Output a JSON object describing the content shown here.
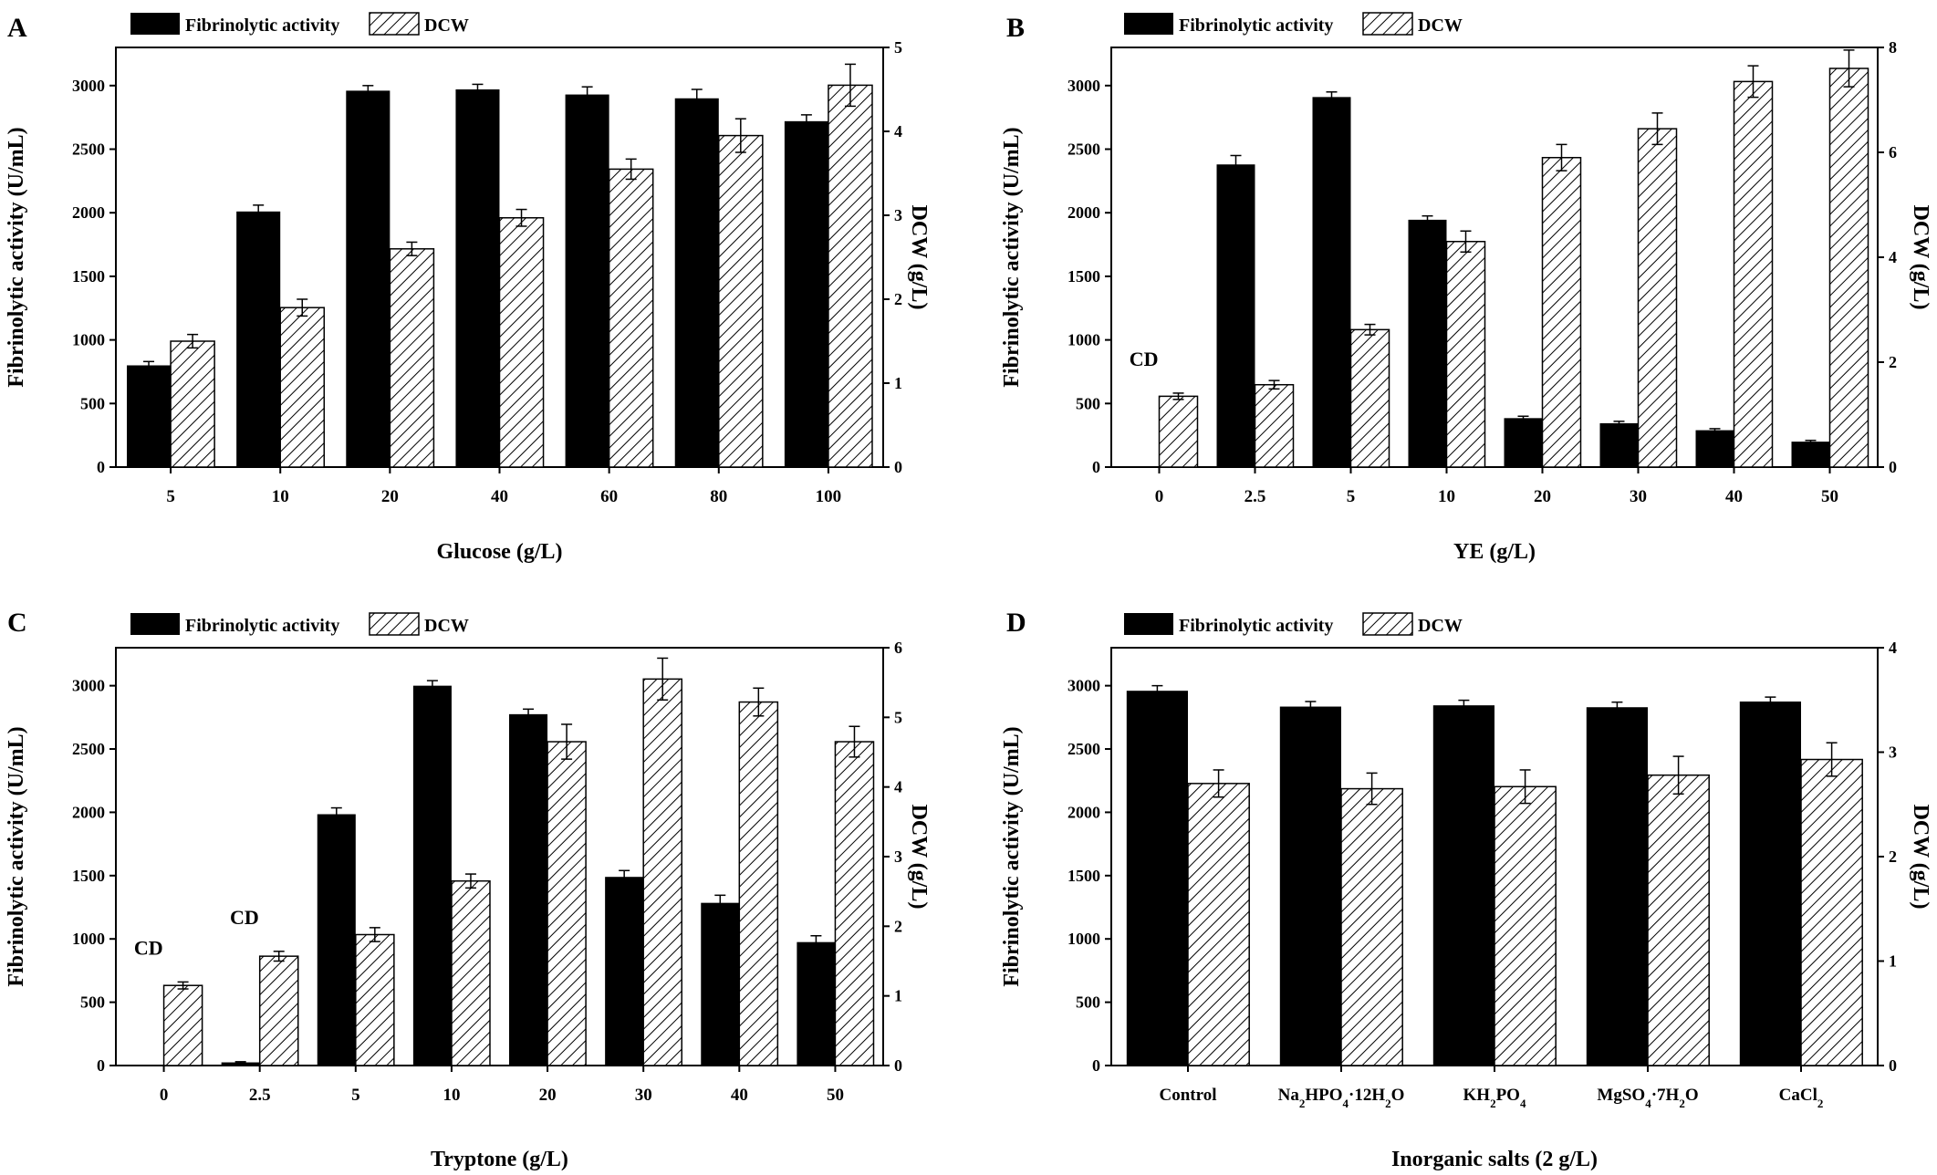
{
  "chart_data": [
    {
      "panel": "A",
      "type": "bar",
      "xlabel": "Glucose (g/L)",
      "ylabel": "Fibrinolytic activity (U/mL)",
      "y2label": "DCW (g/L)",
      "categories": [
        "5",
        "10",
        "20",
        "40",
        "60",
        "80",
        "100"
      ],
      "ylim": [
        0,
        3300
      ],
      "yticks": [
        0,
        500,
        1000,
        1500,
        2000,
        2500,
        3000
      ],
      "y2lim": [
        0,
        5
      ],
      "y2ticks": [
        0,
        1,
        2,
        3,
        4,
        5
      ],
      "legend": {
        "position": "top-left",
        "labels": [
          "Fibrinolytic activity",
          "DCW"
        ]
      },
      "series": [
        {
          "name": "Fibrinolytic activity",
          "axis": "left",
          "color": "#000000",
          "values": [
            800,
            2010,
            2960,
            2970,
            2930,
            2900,
            2720
          ],
          "errors": [
            30,
            50,
            40,
            40,
            60,
            70,
            50
          ]
        },
        {
          "name": "DCW",
          "axis": "right",
          "pattern": "hatch",
          "values": [
            1.5,
            1.9,
            2.6,
            2.97,
            3.55,
            3.95,
            4.55
          ],
          "errors": [
            0.08,
            0.1,
            0.08,
            0.1,
            0.12,
            0.2,
            0.25
          ]
        }
      ],
      "annotations": []
    },
    {
      "panel": "B",
      "type": "bar",
      "xlabel": "YE (g/L)",
      "ylabel": "Fibrinolytic activity (U/mL)",
      "y2label": "DCW (g/L)",
      "categories": [
        "0",
        "2.5",
        "5",
        "10",
        "20",
        "30",
        "40",
        "50"
      ],
      "ylim": [
        0,
        3300
      ],
      "yticks": [
        0,
        500,
        1000,
        1500,
        2000,
        2500,
        3000
      ],
      "y2lim": [
        0,
        8
      ],
      "y2ticks": [
        0,
        2,
        4,
        6,
        8
      ],
      "legend": {
        "position": "top-left",
        "labels": [
          "Fibrinolytic activity",
          "DCW"
        ]
      },
      "series": [
        {
          "name": "Fibrinolytic activity",
          "axis": "left",
          "color": "#000000",
          "values": [
            0,
            2380,
            2910,
            1945,
            385,
            345,
            290,
            200
          ],
          "errors": [
            0,
            70,
            40,
            30,
            15,
            15,
            12,
            10
          ]
        },
        {
          "name": "DCW",
          "axis": "right",
          "pattern": "hatch",
          "values": [
            1.35,
            1.57,
            2.62,
            4.3,
            5.9,
            6.45,
            7.35,
            7.6
          ],
          "errors": [
            0.06,
            0.08,
            0.1,
            0.2,
            0.25,
            0.3,
            0.3,
            0.35
          ]
        }
      ],
      "annotations": [
        {
          "category_index": 0,
          "text": "CD"
        }
      ]
    },
    {
      "panel": "C",
      "type": "bar",
      "xlabel": "Tryptone (g/L)",
      "ylabel": "Fibrinolytic activity (U/mL)",
      "y2label": "DCW (g/L)",
      "categories": [
        "0",
        "2.5",
        "5",
        "10",
        "20",
        "30",
        "40",
        "50"
      ],
      "ylim": [
        0,
        3300
      ],
      "yticks": [
        0,
        500,
        1000,
        1500,
        2000,
        2500,
        3000
      ],
      "y2lim": [
        0,
        6
      ],
      "y2ticks": [
        0,
        1,
        2,
        3,
        4,
        5,
        6
      ],
      "legend": {
        "position": "top-left",
        "labels": [
          "Fibrinolytic activity",
          "DCW"
        ]
      },
      "series": [
        {
          "name": "Fibrinolytic activity",
          "axis": "left",
          "color": "#000000",
          "values": [
            0,
            25,
            1985,
            3000,
            2775,
            1490,
            1285,
            975
          ],
          "errors": [
            0,
            5,
            50,
            40,
            40,
            50,
            60,
            50
          ]
        },
        {
          "name": "DCW",
          "axis": "right",
          "pattern": "hatch",
          "values": [
            1.15,
            1.57,
            1.88,
            2.65,
            4.65,
            5.55,
            5.22,
            4.65
          ],
          "errors": [
            0.05,
            0.07,
            0.1,
            0.1,
            0.25,
            0.3,
            0.2,
            0.22
          ]
        }
      ],
      "annotations": [
        {
          "category_index": 0,
          "text": "CD"
        },
        {
          "category_index": 1,
          "text": "CD"
        }
      ]
    },
    {
      "panel": "D",
      "type": "bar",
      "xlabel": "Inorganic salts (2 g/L)",
      "ylabel": "Fibrinolytic activity (U/mL)",
      "y2label": "DCW (g/L)",
      "categories": [
        "Control",
        "Na2HPO4·12H2O",
        "KH2PO4",
        "MgSO4·7H2O",
        "CaCl2"
      ],
      "ylim": [
        0,
        3300
      ],
      "yticks": [
        0,
        500,
        1000,
        1500,
        2000,
        2500,
        3000
      ],
      "y2lim": [
        0,
        4
      ],
      "y2ticks": [
        0,
        1,
        2,
        3,
        4
      ],
      "legend": {
        "position": "top-left",
        "labels": [
          "Fibrinolytic activity",
          "DCW"
        ]
      },
      "series": [
        {
          "name": "Fibrinolytic activity",
          "axis": "left",
          "color": "#000000",
          "values": [
            2960,
            2835,
            2845,
            2830,
            2875
          ],
          "errors": [
            40,
            40,
            40,
            40,
            35
          ]
        },
        {
          "name": "DCW",
          "axis": "right",
          "pattern": "hatch",
          "values": [
            2.7,
            2.65,
            2.67,
            2.78,
            2.93
          ],
          "errors": [
            0.13,
            0.15,
            0.16,
            0.18,
            0.16
          ]
        }
      ],
      "annotations": []
    }
  ]
}
